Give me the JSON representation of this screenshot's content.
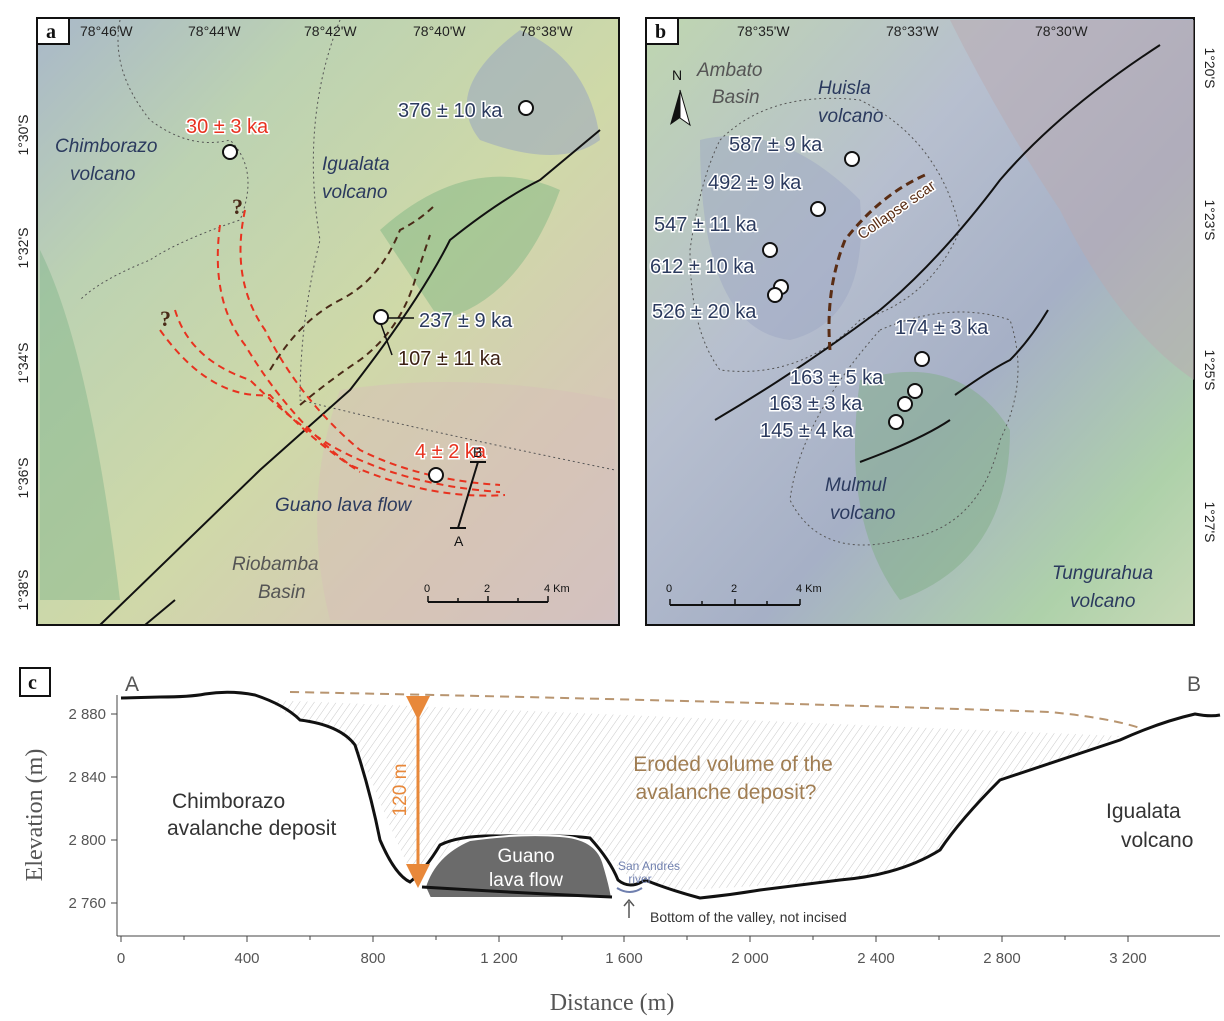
{
  "panel_a": {
    "label": "a",
    "lon_ticks": [
      "78°46'W",
      "78°44'W",
      "78°42'W",
      "78°40'W",
      "78°38'W"
    ],
    "lat_ticks": [
      "1°30'S",
      "1°32'S",
      "1°34'S",
      "1°36'S",
      "1°38'S"
    ],
    "place_labels": {
      "chimborazo_1": "Chimborazo",
      "chimborazo_2": "volcano",
      "igualata_1": "Igualata",
      "igualata_2": "volcano",
      "guano": "Guano lava flow",
      "riobamba_1": "Riobamba",
      "riobamba_2": "Basin"
    },
    "ages": {
      "a376": "376 ± 10 ka",
      "a30": "30 ± 3 ka",
      "a237": "237 ± 9 ka",
      "a107": "107 ± 11 ka",
      "a4": "4 ± 2 ka"
    },
    "question_mark": "?",
    "profile_a": "A",
    "profile_b": "B",
    "scale": [
      "0",
      "2",
      "4 Km"
    ]
  },
  "panel_b": {
    "label": "b",
    "lon_ticks": [
      "78°35'W",
      "78°33'W",
      "78°30'W"
    ],
    "lat_ticks": [
      "1°20'S",
      "1°23'S",
      "1°25'S",
      "1°27'S"
    ],
    "north": "N",
    "place_labels": {
      "ambato_1": "Ambato",
      "ambato_2": "Basin",
      "huisla_1": "Huisla",
      "huisla_2": "volcano",
      "collapse": "Collapse scar",
      "mulmul_1": "Mulmul",
      "mulmul_2": "volcano",
      "tungurahua_1": "Tungurahua",
      "tungurahua_2": "volcano"
    },
    "ages": {
      "a587": "587 ± 9 ka",
      "a492": "492 ± 9 ka",
      "a547": "547 ± 11 ka",
      "a612": "612 ± 10 ka",
      "a526": "526 ± 20 ka",
      "a174": "174 ± 3 ka",
      "a163a": "163 ± 5 ka",
      "a163b": "163 ± 3 ka",
      "a145": "145 ± 4 ka"
    },
    "scale": [
      "0",
      "2",
      "4 Km"
    ]
  },
  "panel_c": {
    "label": "c",
    "end_a": "A",
    "end_b": "B",
    "ylabel": "Elevation (m)",
    "xlabel": "Distance (m)",
    "xticks": [
      "0",
      "400",
      "800",
      "1 200",
      "1 600",
      "2 000",
      "2 400",
      "2 800",
      "3 200"
    ],
    "yticks": [
      "2 880",
      "2 840",
      "2 800",
      "2 760"
    ],
    "chimborazo_1": "Chimborazo",
    "chimborazo_2": "avalanche deposit",
    "igualata_1": "Igualata",
    "igualata_2": "volcano",
    "eroded_1": "Eroded volume of the",
    "eroded_2": "avalanche deposit?",
    "thickness": "120 m",
    "guano_1": "Guano",
    "guano_2": "lava flow",
    "river_1": "San Andrés",
    "river_2": "river",
    "valley_note": "Bottom of the valley, not incised"
  },
  "colors": {
    "red_label": "#e8321f",
    "blue_label": "#2b3a5e",
    "dark_label": "#3a1f12",
    "eroded_text": "#a07d52",
    "arrow": "#e8883a",
    "dashed_surface": "#b89570",
    "lava": "#6b6b6b",
    "river": "#6f7fae"
  }
}
